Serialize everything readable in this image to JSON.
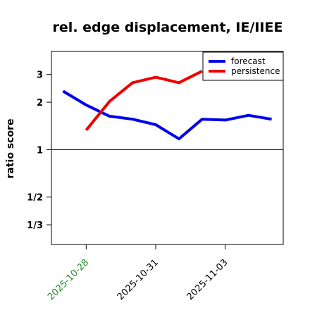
{
  "chart_data": {
    "type": "line",
    "title": "rel. edge displacement, IE/IIEE",
    "xlabel": "",
    "ylabel": "ratio score",
    "y_scale": "log",
    "ylim": [
      0.25,
      4.2
    ],
    "reference_line": 1,
    "y_ticks": [
      {
        "value": 3,
        "label": "3"
      },
      {
        "value": 2,
        "label": "2"
      },
      {
        "value": 1,
        "label": "1"
      },
      {
        "value": 0.5,
        "label": "1/2"
      },
      {
        "value": 0.3333,
        "label": "1/3"
      }
    ],
    "x_range": [
      -1.5,
      8.5
    ],
    "x_ticks": [
      {
        "value": 0,
        "label": "2025-10-28",
        "color": "#228b22"
      },
      {
        "value": 3,
        "label": "2025-10-31",
        "color": "#000000"
      },
      {
        "value": 6,
        "label": "2025-11-03",
        "color": "#000000"
      }
    ],
    "series": [
      {
        "name": "forecast",
        "color": "#0000ee",
        "x": [
          -1,
          0,
          1,
          2,
          3,
          4,
          5,
          6,
          7,
          8
        ],
        "values": [
          2.35,
          1.92,
          1.63,
          1.56,
          1.44,
          1.17,
          1.56,
          1.54,
          1.65,
          1.56
        ]
      },
      {
        "name": "persistence",
        "color": "#ee0000",
        "x": [
          0,
          1,
          2,
          3,
          4,
          5
        ],
        "values": [
          1.33,
          2.02,
          2.66,
          2.88,
          2.66,
          3.15
        ]
      }
    ],
    "legend": {
      "position": "top-right"
    }
  }
}
